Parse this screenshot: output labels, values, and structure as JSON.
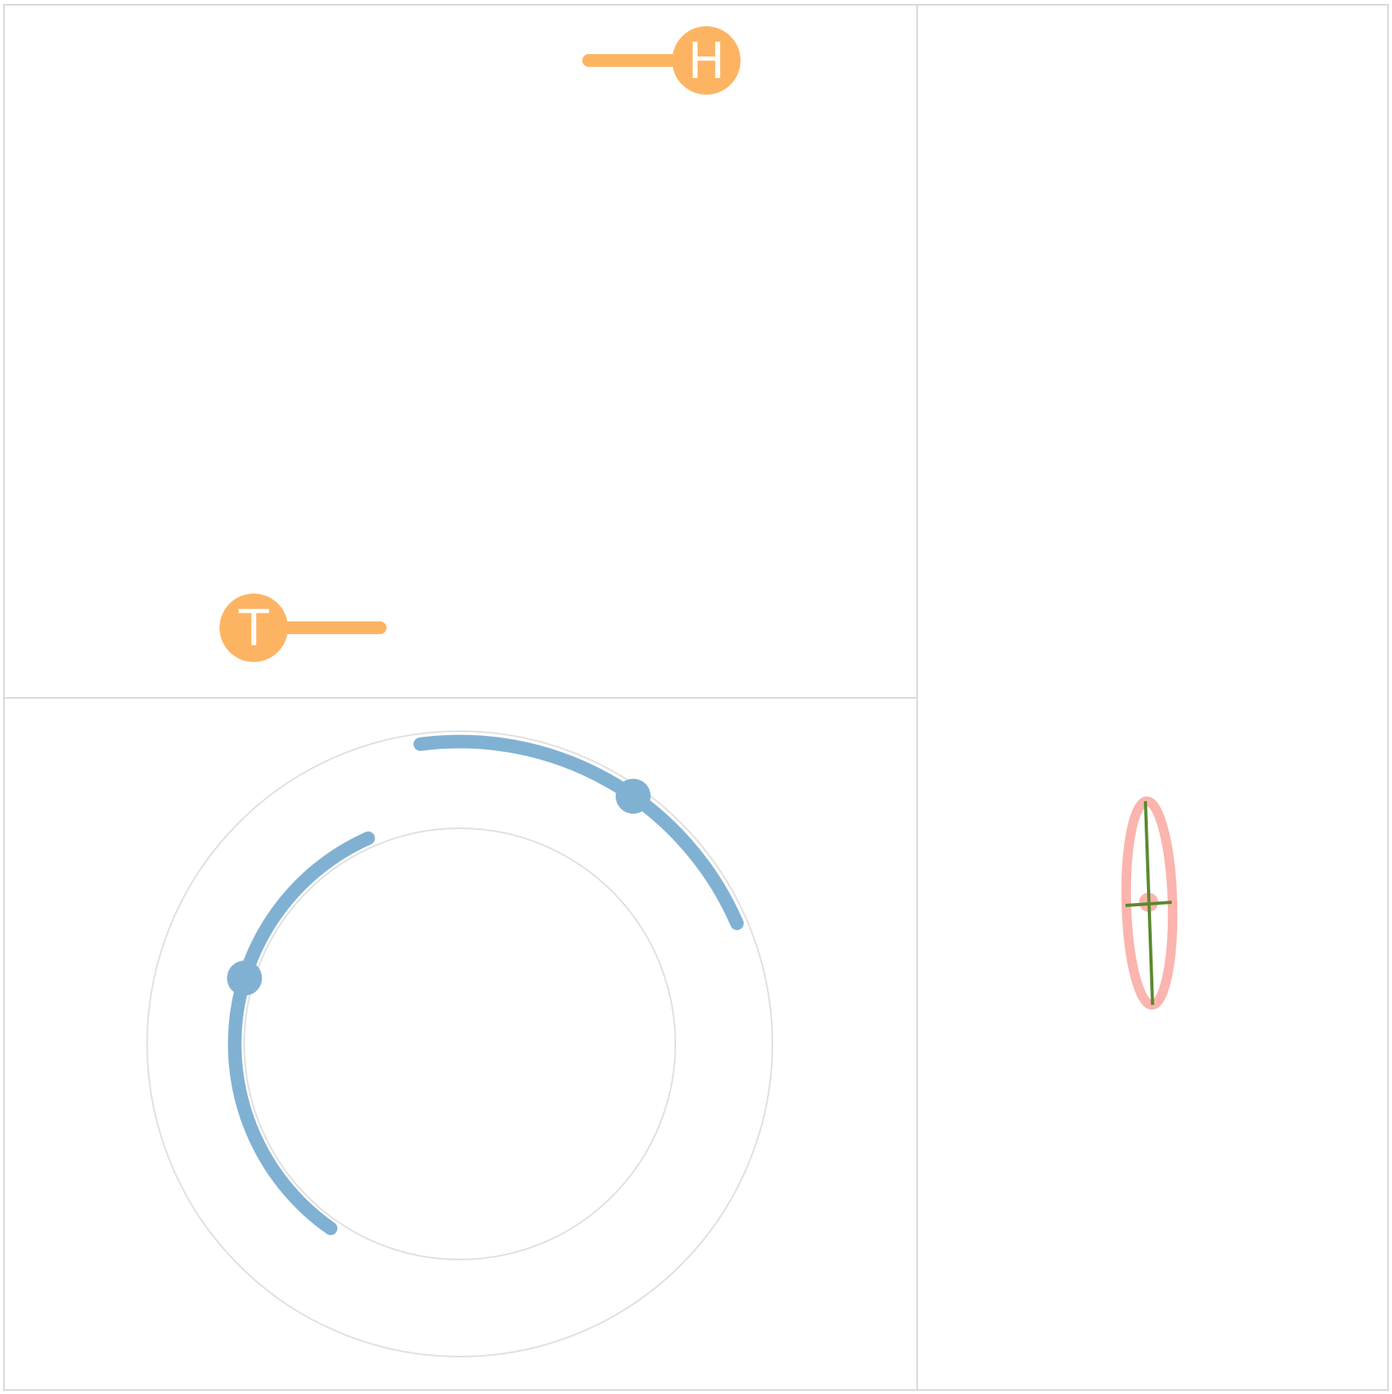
{
  "colors": {
    "panel_border": "#d9d9d9",
    "guide_circle": "#e0e0e0",
    "handle_orange": "#fdb462",
    "arc_blue": "#80b1d3",
    "ellipse_pink": "#fbb4ae",
    "axis_green": "#5a8a2e",
    "label_text": "#ffffff"
  },
  "top_panel": {
    "handles": [
      {
        "id": "h",
        "label": "H",
        "icon": "head-handle-circle"
      },
      {
        "id": "t",
        "label": "T",
        "icon": "tail-handle-circle"
      }
    ]
  },
  "bottom_panel": {
    "rings": [
      "outer-ring",
      "inner-ring"
    ],
    "arcs": [
      "outer-arc",
      "inner-arc"
    ]
  },
  "right_panel": {
    "shape": "ellipse-with-axes"
  }
}
